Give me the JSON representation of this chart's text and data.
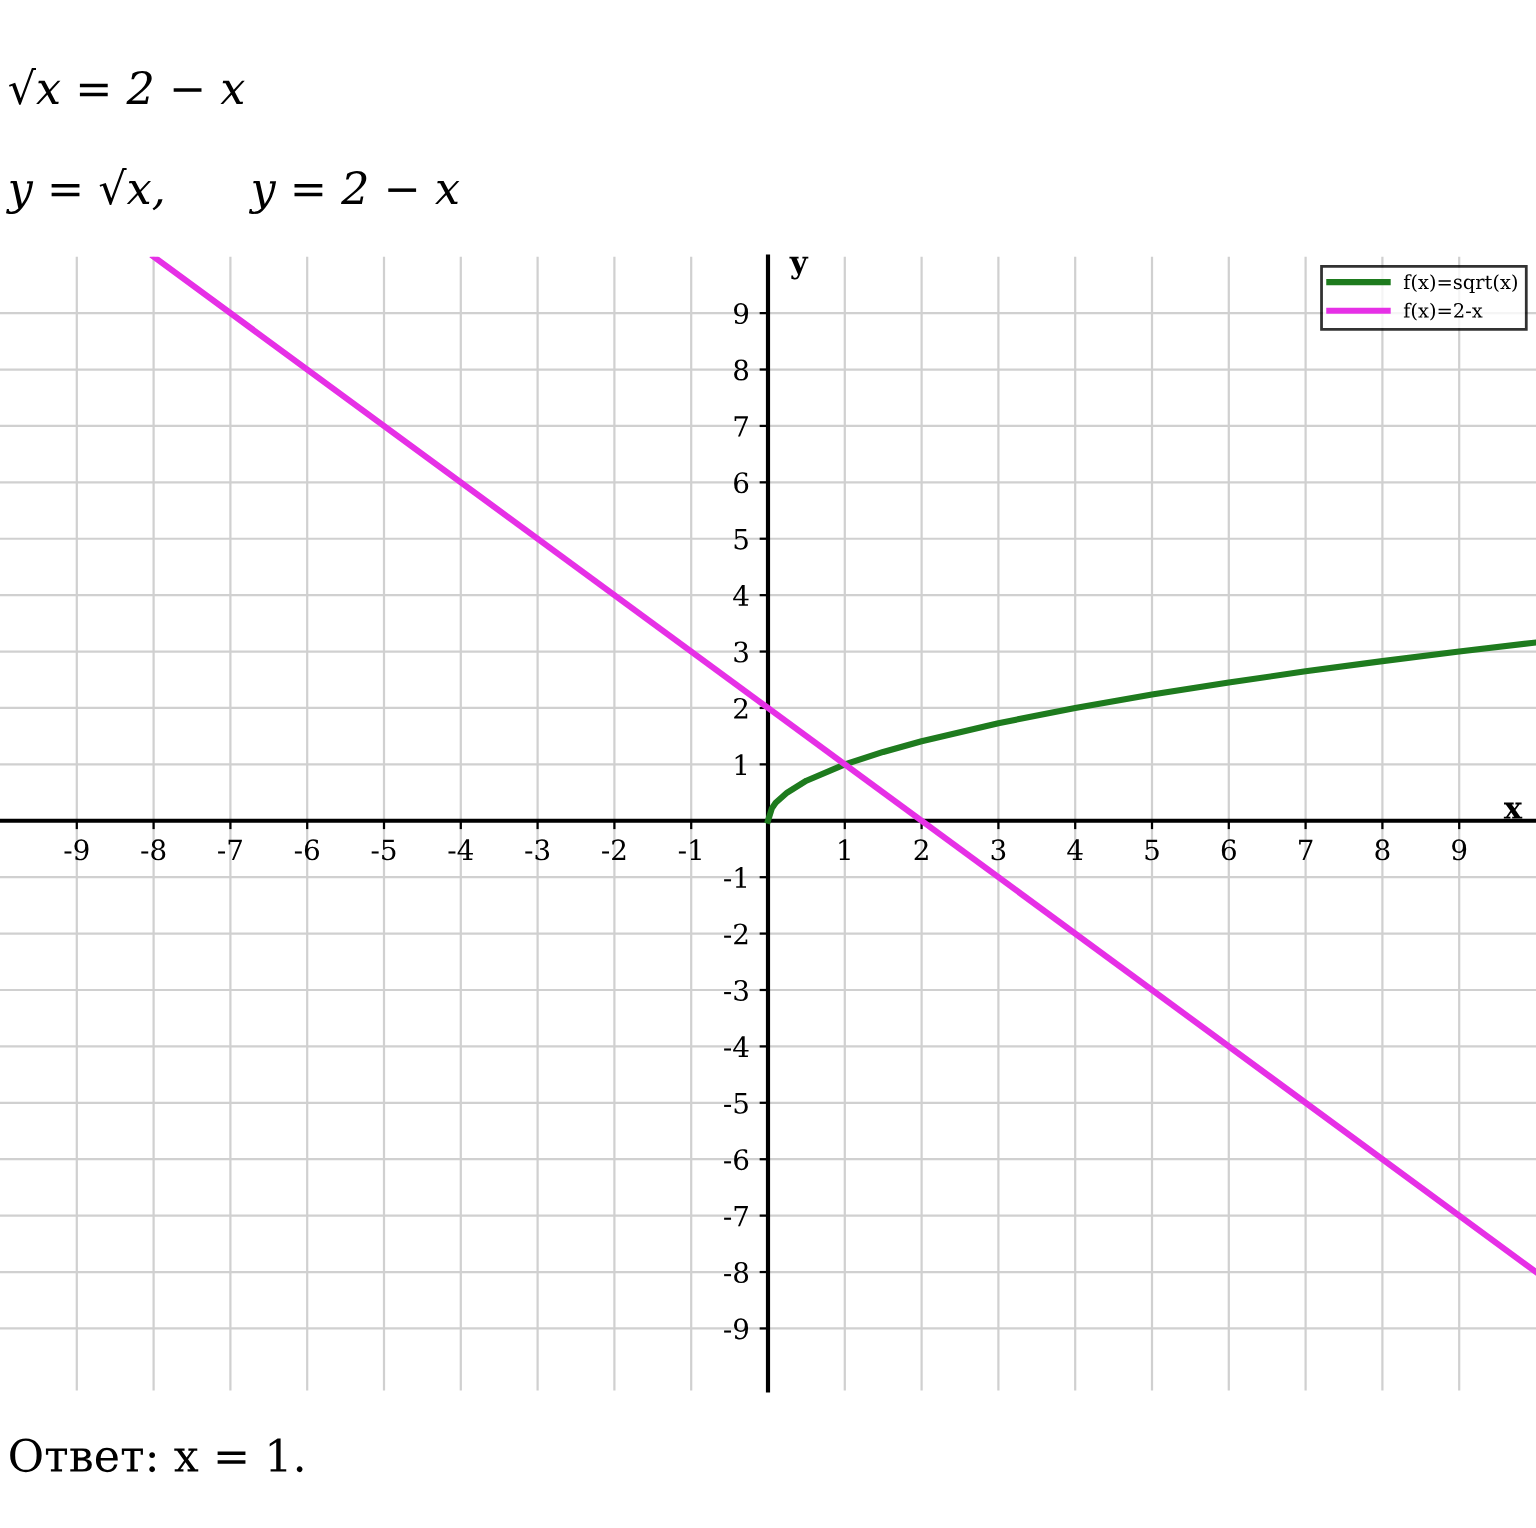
{
  "chart_data": {
    "type": "line",
    "annotations": [
      "√x = 2 − x",
      "y = √x,      y = 2 − x",
      "Ответ: x = 1."
    ],
    "xlabel": "x",
    "ylabel": "y",
    "series": [
      {
        "name": "f(x)=sqrt(x)",
        "color": "#1e7b1e",
        "x": [
          0,
          0.05,
          0.1,
          0.25,
          0.5,
          1,
          1.5,
          2,
          3,
          4,
          5,
          6,
          7,
          8,
          9,
          10
        ],
        "values": [
          0,
          0.22,
          0.32,
          0.5,
          0.71,
          1,
          1.22,
          1.41,
          1.73,
          2,
          2.24,
          2.45,
          2.65,
          2.83,
          3,
          3.16
        ]
      },
      {
        "name": "f(x)=2-x",
        "color": "#e630e6",
        "x": [
          -8,
          10
        ],
        "values": [
          10,
          -8
        ]
      }
    ],
    "xlim": [
      -10,
      10
    ],
    "ylim": [
      -10.1,
      10
    ],
    "xticks": [
      -9,
      -8,
      -7,
      -6,
      -5,
      -4,
      -3,
      -2,
      -1,
      1,
      2,
      3,
      4,
      5,
      6,
      7,
      8,
      9
    ],
    "yticks": [
      -9,
      -8,
      -7,
      -6,
      -5,
      -4,
      -3,
      -2,
      -1,
      1,
      2,
      3,
      4,
      5,
      6,
      7,
      8,
      9
    ],
    "grid": true,
    "legend": "top right",
    "marker": "none",
    "line_style": "solid"
  }
}
